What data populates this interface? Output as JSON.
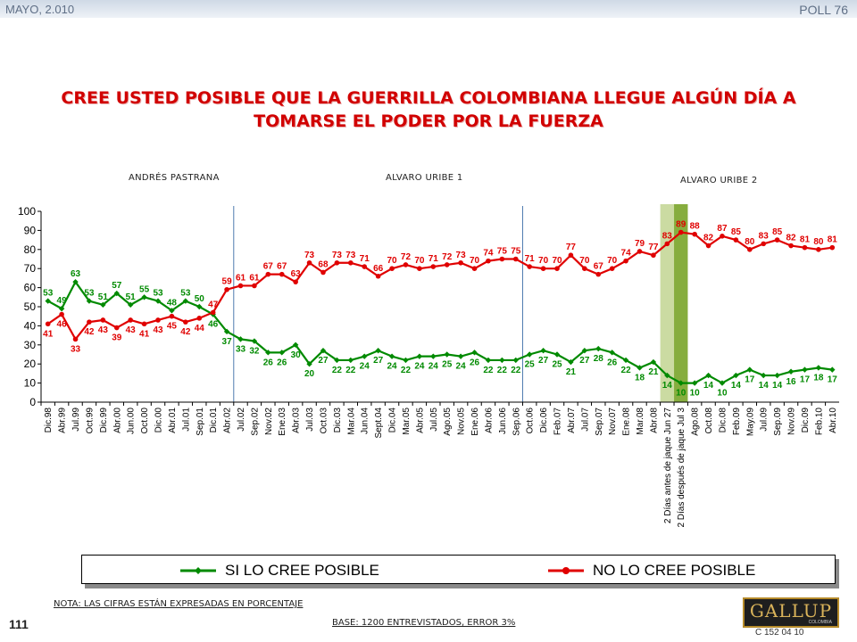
{
  "header": {
    "date": "MAYO, 2.010",
    "poll": "POLL 76"
  },
  "title": "CREE USTED POSIBLE QUE LA GUERRILLA COLOMBIANA LLEGUE ALGÚN DÍA A TOMARSE EL PODER POR LA FUERZA",
  "eras": [
    "ANDRÉS  PASTRANA",
    "ALVARO URIBE  1",
    "ALVARO URIBE  2"
  ],
  "colors": {
    "si": "#008a00",
    "no": "#e00000",
    "highlight_light": "#cbdba2",
    "highlight_dark": "#86ad3e",
    "divider": "#4f7bb0"
  },
  "footer": {
    "nota": "NOTA: LAS CIFRAS ESTÁN EXPRESADAS EN PORCENTAJE",
    "page": "111",
    "base": "BASE: 1200 ENTREVISTADOS, ERROR 3%",
    "code": "C 152 04 10",
    "logo_text": "GALLUP",
    "logo_sub": "COLOMBIA"
  },
  "chart_data": {
    "type": "line",
    "ylim": [
      0,
      100
    ],
    "yticks": [
      0,
      10,
      20,
      30,
      40,
      50,
      60,
      70,
      80,
      90,
      100
    ],
    "grid": false,
    "legend_position": "bottom",
    "categories": [
      "Dic.98",
      "Abr.99",
      "Jul.99",
      "Oct.99",
      "Dic.99",
      "Abr.00",
      "Jun.00",
      "Oct.00",
      "Dic.00",
      "Abr.01",
      "Jul.01",
      "Sep.01",
      "Dic.01",
      "Abr.02",
      "Jul.02",
      "Sep.02",
      "Nov.02",
      "Ene.03",
      "Abr.03",
      "Jul.03",
      "Oct.03",
      "Dic.03",
      "Mar.04",
      "Jun.04",
      "Sept.04",
      "Dic.04",
      "Mar.05",
      "Abr.05",
      "Jul.05",
      "Ago.05",
      "Nov.05",
      "Ene.06",
      "Abr.06",
      "Jun.06",
      "Sep.06",
      "Oct.06",
      "Dic.06",
      "Feb.07",
      "Abr.07",
      "Jul.07",
      "Sep.07",
      "Nov.07",
      "Ene.08",
      "Mar.08",
      "Abr.08",
      "2 Días antes de jaque Jun 27",
      "2 Días después de jaque Jul 3",
      "Ago.08",
      "Oct.08",
      "Dic.08",
      "Feb.09",
      "May.09",
      "Jul.09",
      "Sep.09",
      "Nov.09",
      "Dic.09",
      "Feb.10",
      "Abr.10"
    ],
    "series": [
      {
        "name": "SI LO CREE POSIBLE",
        "color": "#008a00",
        "values": [
          53,
          49,
          63,
          53,
          51,
          57,
          51,
          55,
          53,
          48,
          53,
          50,
          46,
          37,
          33,
          32,
          26,
          26,
          30,
          20,
          27,
          22,
          22,
          24,
          27,
          24,
          22,
          24,
          24,
          25,
          24,
          26,
          22,
          22,
          22,
          25,
          27,
          25,
          21,
          27,
          28,
          26,
          22,
          18,
          21,
          14,
          10,
          10,
          14,
          10,
          14,
          17,
          14,
          14,
          16,
          17,
          18,
          17
        ]
      },
      {
        "name": "NO LO CREE POSIBLE",
        "color": "#e00000",
        "values": [
          41,
          46,
          33,
          42,
          43,
          39,
          43,
          41,
          43,
          45,
          42,
          44,
          47,
          59,
          61,
          61,
          67,
          67,
          63,
          73,
          68,
          73,
          73,
          71,
          66,
          70,
          72,
          70,
          71,
          72,
          73,
          70,
          74,
          75,
          75,
          71,
          70,
          70,
          77,
          70,
          67,
          70,
          74,
          79,
          77,
          83,
          89,
          88,
          82,
          87,
          85,
          80,
          83,
          85,
          82,
          81,
          80,
          81
        ]
      }
    ],
    "highlighted_categories": [
      "2 Días antes de jaque Jun 27",
      "2 Días después de jaque Jul 3"
    ]
  }
}
